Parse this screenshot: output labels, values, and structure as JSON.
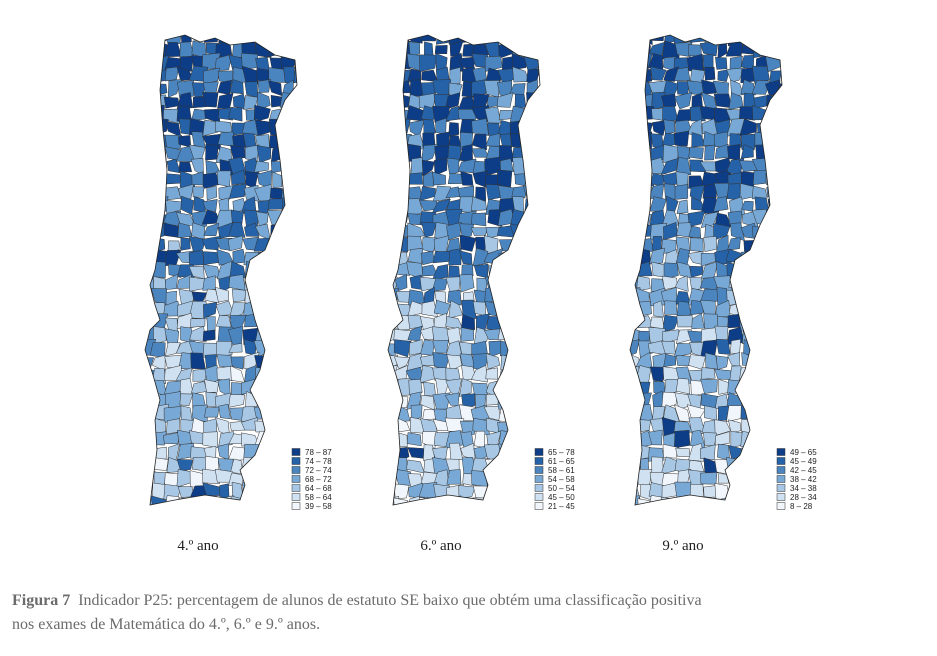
{
  "maps": [
    {
      "label": "4.º ano",
      "legend": [
        "78 – 87",
        "74 – 78",
        "72 – 74",
        "68 – 72",
        "64 – 68",
        "58 – 64",
        "39 – 58"
      ]
    },
    {
      "label": "6.º ano",
      "legend": [
        "65 – 78",
        "61 – 65",
        "58 – 61",
        "54 – 58",
        "50 – 54",
        "45 – 50",
        "21 – 45"
      ]
    },
    {
      "label": "9.º ano",
      "legend": [
        "49 – 65",
        "45 – 49",
        "42 – 45",
        "38 – 42",
        "34 – 38",
        "28 – 34",
        "8 – 28"
      ]
    }
  ],
  "legend_colors": [
    "#0d3d86",
    "#2562a8",
    "#4a85c0",
    "#78a8d5",
    "#a7c7e5",
    "#d0e1f2",
    "#f1f6fc"
  ],
  "caption": {
    "label": "Figura 7",
    "lines": [
      "Indicador P25: percentagem de alunos de estatuto SE baixo que obtém uma classificação positiva",
      "nos exames de Matemática do 4.º, 6.º e 9.º anos."
    ]
  }
}
